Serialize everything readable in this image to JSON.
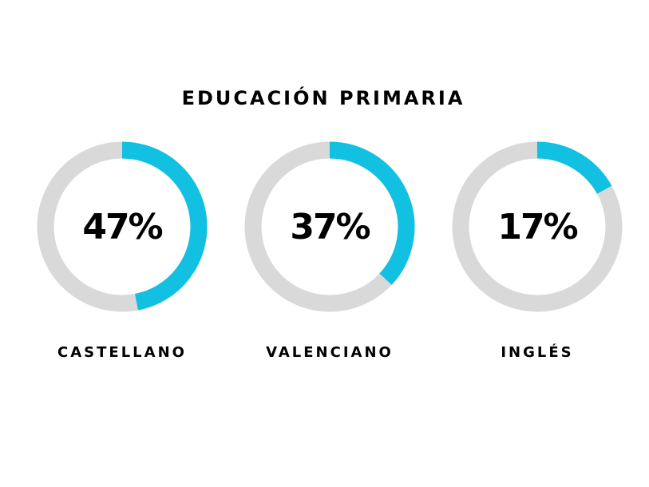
{
  "chart_data": {
    "type": "gauge",
    "title": "EDUCACIÓN PRIMARIA",
    "categories": [
      "CASTELLANO",
      "VALENCIANO",
      "INGLÉS"
    ],
    "values": [
      47,
      37,
      17
    ],
    "value_labels": [
      "47%",
      "37%",
      "17%"
    ],
    "ylim": [
      0,
      100
    ],
    "color": "#12c0e1",
    "track_color": "#d9d9d9"
  }
}
